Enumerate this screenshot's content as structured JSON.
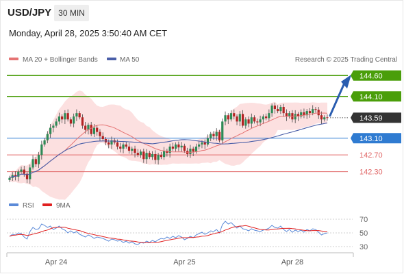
{
  "header": {
    "symbol": "USD/JPY",
    "timeframe": "30 MIN",
    "timestamp": "Monday, April 28, 2025 3:50:40 AM CET"
  },
  "legend": {
    "ma20_label": "MA 20 + Bollinger Bands",
    "ma50_label": "MA 50",
    "credit": "Research © 2025 Trading Central",
    "rsi_label": "RSI",
    "rsi_ma_label": "9MA"
  },
  "colors": {
    "resistance": "#4a9e0a",
    "pivot": "#2f7bd1",
    "support": "#e06666",
    "current": "#333333",
    "candle_up": "#2e8b57",
    "candle_down": "#b22222",
    "bollinger_fill": "#fbd5d5",
    "ma20": "#e57373",
    "ma50": "#4a5ea8",
    "rsi": "#5b8ad8",
    "rsi_ma": "#e02020",
    "arrow": "#2a5db0"
  },
  "chart_data": [
    {
      "type": "candlestick",
      "title": "USD/JPY",
      "x_ticks": [
        "Apr 24",
        "Apr 25",
        "Apr 28"
      ],
      "ylim": [
        141.9,
        144.85
      ],
      "levels": [
        {
          "value": 144.6,
          "label": "144.60",
          "kind": "resistance"
        },
        {
          "value": 144.1,
          "label": "144.10",
          "kind": "resistance"
        },
        {
          "value": 143.59,
          "label": "143.59",
          "kind": "current"
        },
        {
          "value": 143.1,
          "label": "143.10",
          "kind": "pivot"
        },
        {
          "value": 142.7,
          "label": "142.70",
          "kind": "support"
        },
        {
          "value": 142.3,
          "label": "142.30",
          "kind": "support"
        }
      ],
      "close": [
        142.15,
        142.22,
        142.18,
        142.3,
        142.35,
        142.25,
        142.12,
        142.4,
        142.6,
        142.48,
        142.7,
        142.95,
        143.05,
        143.2,
        143.35,
        143.4,
        143.5,
        143.62,
        143.55,
        143.7,
        143.55,
        143.45,
        143.62,
        143.7,
        143.6,
        143.4,
        143.3,
        143.42,
        143.2,
        143.35,
        143.25,
        143.15,
        143.08,
        143.0,
        142.95,
        143.05,
        143.0,
        142.9,
        142.85,
        142.95,
        142.9,
        142.8,
        142.85,
        142.75,
        142.7,
        142.78,
        142.6,
        142.75,
        142.65,
        142.72,
        142.58,
        142.7,
        142.65,
        142.8,
        142.75,
        142.9,
        142.85,
        142.95,
        142.88,
        142.92,
        142.8,
        142.72,
        142.85,
        142.78,
        142.9,
        142.95,
        143.0,
        142.95,
        143.1,
        143.2,
        143.15,
        143.25,
        143.05,
        143.5,
        143.65,
        143.55,
        143.7,
        143.62,
        143.5,
        143.68,
        143.4,
        143.55,
        143.45,
        143.6,
        143.5,
        143.48,
        143.55,
        143.62,
        143.58,
        143.7,
        143.88,
        143.8,
        143.75,
        143.85,
        143.7,
        143.62,
        143.7,
        143.55,
        143.68,
        143.62,
        143.72,
        143.65,
        143.75,
        143.7,
        143.8,
        143.78,
        143.65,
        143.55,
        143.6,
        143.59
      ],
      "rsi": [
        45,
        48,
        47,
        50,
        49,
        44,
        41,
        52,
        58,
        55,
        56,
        63,
        61,
        58,
        60,
        55,
        57,
        60,
        56,
        54,
        50,
        53,
        50,
        52,
        48,
        46,
        44,
        47,
        45,
        42,
        44,
        43,
        42,
        40,
        38,
        41,
        40,
        38,
        39,
        36,
        38,
        35,
        37,
        34,
        33,
        36,
        35,
        38,
        36,
        39,
        37,
        40,
        42,
        41,
        44,
        42,
        45,
        43,
        46,
        44,
        40,
        42,
        45,
        43,
        47,
        49,
        51,
        48,
        50,
        53,
        52,
        55,
        50,
        62,
        67,
        63,
        65,
        61,
        57,
        60,
        56,
        55,
        53,
        56,
        54,
        53,
        52,
        54,
        55,
        57,
        61,
        58,
        57,
        60,
        55,
        52,
        55,
        51,
        54,
        52,
        54,
        51,
        55,
        53,
        56,
        55,
        51,
        47,
        49,
        50
      ],
      "rsi_levels": [
        70,
        50,
        30
      ]
    }
  ]
}
